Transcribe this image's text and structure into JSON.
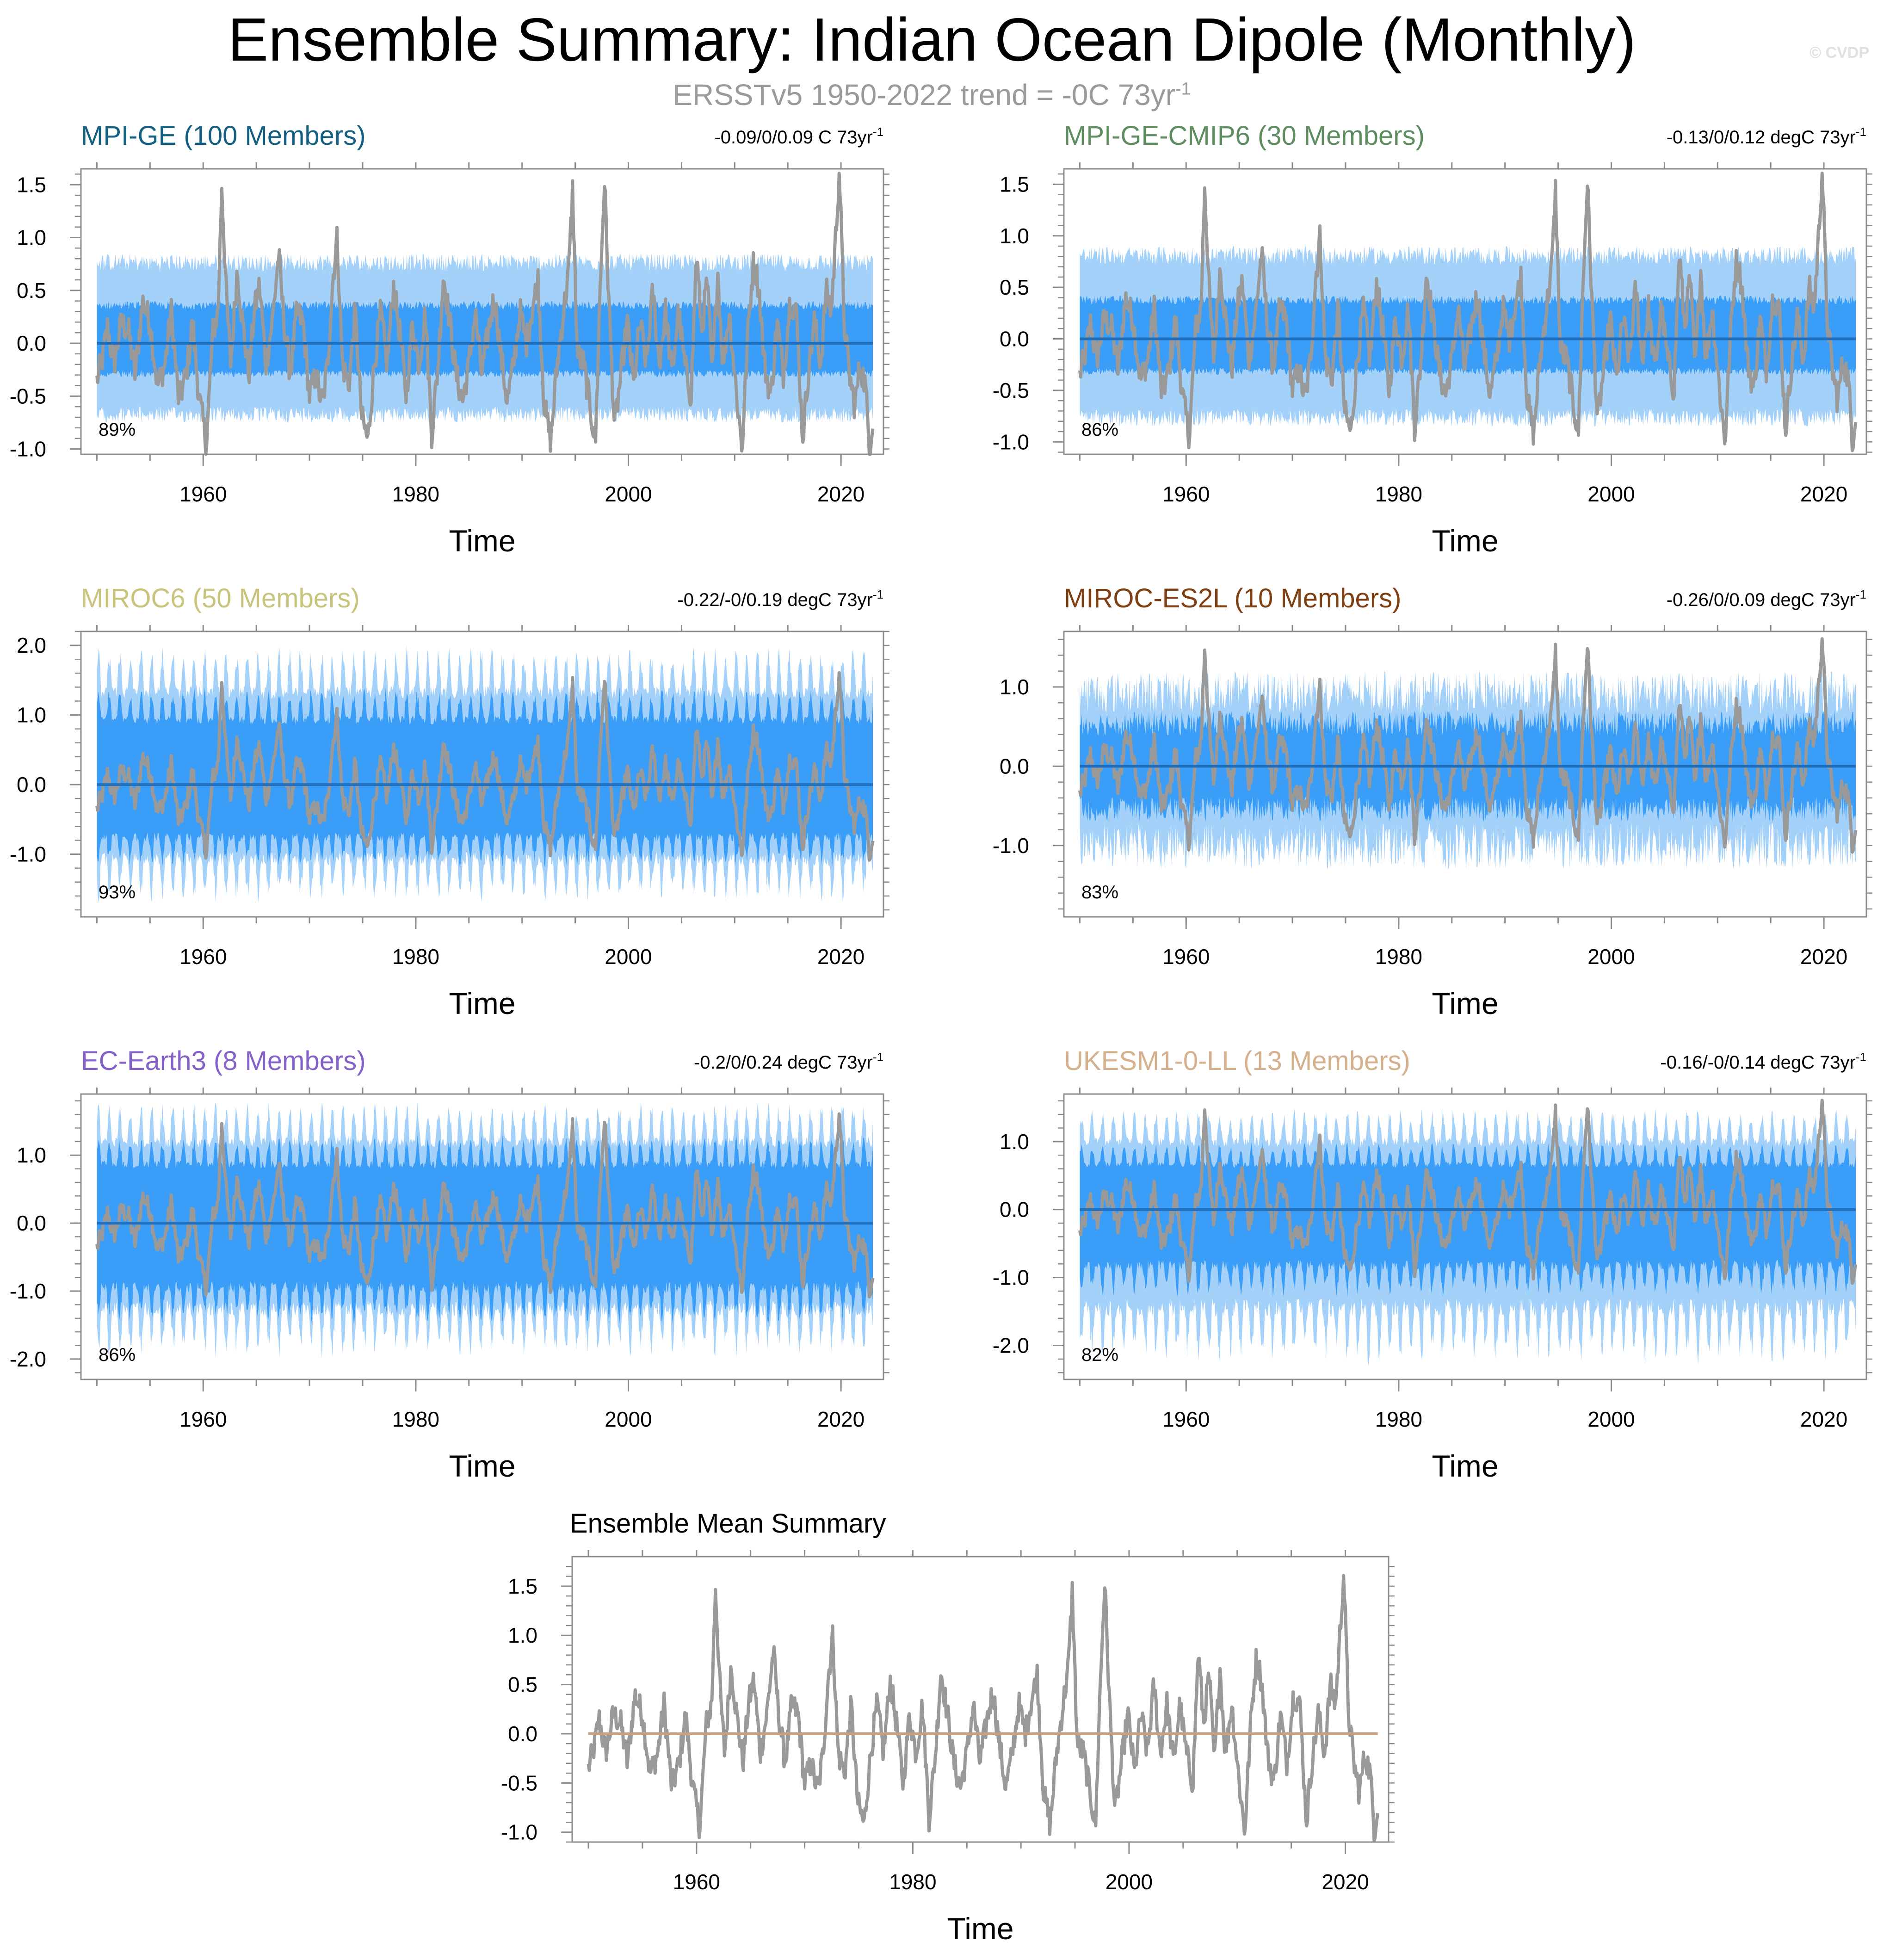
{
  "figure": {
    "title": "Ensemble Summary: Indian Ocean Dipole (Monthly)",
    "subtitle": "ERSSTv5 1950-2022 trend = -0C 73yr",
    "subtitle_exponent": "-1",
    "watermark": "© CVDP"
  },
  "colors": {
    "observed_line": "#999999",
    "spread_outer": "#a3d1fa",
    "spread_inner": "#3a9df7",
    "ensemble_mean_line": "#1f6fbf",
    "summary_zero_line": "#c9a07f",
    "axis": "#8c8c8c"
  },
  "chart_data": [
    {
      "id": "mpi-ge",
      "type": "line",
      "title": "MPI-GE (100 Members)",
      "title_color": "#135f82",
      "trend_text": "-0.09/0/0.09 C 73yr",
      "trend_exponent": "-1",
      "percent_label": "89%",
      "xlabel": "Time",
      "xlim": [
        1948.5,
        2024
      ],
      "ylim": [
        -1.05,
        1.65
      ],
      "yticks": [
        1.5,
        1.0,
        0.5,
        0.0,
        -0.5,
        -1.0
      ],
      "ytick_labels": [
        "1.5",
        "1.0",
        "0.5",
        "0.0",
        "-0.5",
        "-1.0"
      ],
      "xticks": [
        1960,
        1980,
        2000,
        2020
      ],
      "spread_style": "uniform",
      "spread_outer": [
        -0.75,
        0.85
      ],
      "spread_inner": [
        -0.32,
        0.4
      ]
    },
    {
      "id": "mpi-ge-cmip6",
      "type": "line",
      "title": "MPI-GE-CMIP6 (30 Members)",
      "title_color": "#5c8c5f",
      "trend_text": "-0.13/0/0.12 degC 73yr",
      "trend_exponent": "-1",
      "percent_label": "86%",
      "xlabel": "Time",
      "xlim": [
        1948.5,
        2024
      ],
      "ylim": [
        -1.12,
        1.65
      ],
      "yticks": [
        1.5,
        1.0,
        0.5,
        0.0,
        -0.5,
        -1.0
      ],
      "ytick_labels": [
        "1.5",
        "1.0",
        "0.5",
        "0.0",
        "-0.5",
        "-1.0"
      ],
      "xticks": [
        1960,
        1980,
        2000,
        2020
      ],
      "spread_style": "uniform",
      "spread_outer": [
        -0.85,
        0.9
      ],
      "spread_inner": [
        -0.35,
        0.42
      ]
    },
    {
      "id": "miroc6",
      "type": "line",
      "title": "MIROC6 (50 Members)",
      "title_color": "#c9c47c",
      "trend_text": "-0.22/-0/0.19 degC 73yr",
      "trend_exponent": "-1",
      "percent_label": "93%",
      "xlabel": "Time",
      "xlim": [
        1948.5,
        2024
      ],
      "ylim": [
        -1.9,
        2.2
      ],
      "yticks": [
        2.0,
        1.0,
        0.0,
        -1.0
      ],
      "ytick_labels": [
        "2.0",
        "1.0",
        "0.0",
        "-1.0"
      ],
      "xticks": [
        1960,
        1980,
        2000,
        2020
      ],
      "spread_style": "seasonal",
      "spread_outer": [
        -1.7,
        2.0
      ],
      "spread_inner": [
        -1.2,
        1.4
      ]
    },
    {
      "id": "miroc-es2l",
      "type": "line",
      "title": "MIROC-ES2L (10 Members)",
      "title_color": "#7f3f12",
      "trend_text": "-0.26/0/0.09 degC 73yr",
      "trend_exponent": "-1",
      "percent_label": "83%",
      "xlabel": "Time",
      "xlim": [
        1948.5,
        2024
      ],
      "ylim": [
        -1.9,
        1.7
      ],
      "yticks": [
        1.0,
        0.0,
        -1.0
      ],
      "ytick_labels": [
        "1.0",
        "0.0",
        "-1.0"
      ],
      "xticks": [
        1960,
        1980,
        2000,
        2020
      ],
      "spread_style": "noisy",
      "spread_outer": [
        -1.3,
        1.2
      ],
      "spread_inner": [
        -0.7,
        0.7
      ]
    },
    {
      "id": "ec-earth3",
      "type": "line",
      "title": "EC-Earth3 (8 Members)",
      "title_color": "#8461c9",
      "trend_text": "-0.2/0/0.24 degC 73yr",
      "trend_exponent": "-1",
      "percent_label": "86%",
      "xlabel": "Time",
      "xlim": [
        1948.5,
        2024
      ],
      "ylim": [
        -2.3,
        1.9
      ],
      "yticks": [
        1.0,
        0.0,
        -1.0,
        -2.0
      ],
      "ytick_labels": [
        "1.0",
        "0.0",
        "-1.0",
        "-2.0"
      ],
      "xticks": [
        1960,
        1980,
        2000,
        2020
      ],
      "spread_style": "seasonal",
      "spread_outer": [
        -2.0,
        1.8
      ],
      "spread_inner": [
        -1.5,
        1.3
      ]
    },
    {
      "id": "ukesm1-0-ll",
      "type": "line",
      "title": "UKESM1-0-LL (13 Members)",
      "title_color": "#d4b08c",
      "trend_text": "-0.16/-0/0.14 degC 73yr",
      "trend_exponent": "-1",
      "percent_label": "82%",
      "xlabel": "Time",
      "xlim": [
        1948.5,
        2024
      ],
      "ylim": [
        -2.5,
        1.7
      ],
      "yticks": [
        1.0,
        0.0,
        -1.0,
        -2.0
      ],
      "ytick_labels": [
        "1.0",
        "0.0",
        "-1.0",
        "-2.0"
      ],
      "xticks": [
        1960,
        1980,
        2000,
        2020
      ],
      "spread_style": "seasonal",
      "spread_outer": [
        -2.3,
        1.5
      ],
      "spread_inner": [
        -1.3,
        1.0
      ]
    },
    {
      "id": "ensemble-mean-summary",
      "type": "line",
      "title": "Ensemble Mean Summary",
      "title_color": "#000000",
      "trend_text": "",
      "trend_exponent": "",
      "percent_label": "",
      "xlabel": "Time",
      "xlim": [
        1948.5,
        2024
      ],
      "ylim": [
        -1.1,
        1.8
      ],
      "yticks": [
        1.5,
        1.0,
        0.5,
        0.0,
        -0.5,
        -1.0
      ],
      "ytick_labels": [
        "1.5",
        "1.0",
        "0.5",
        "0.0",
        "-0.5",
        "-1.0"
      ],
      "xticks": [
        1960,
        1980,
        2000,
        2020
      ],
      "spread_style": "none",
      "spread_outer": [
        0,
        0
      ],
      "spread_inner": [
        0,
        0
      ]
    }
  ],
  "observed_series": {
    "name": "ERSSTv5 observed IOD index",
    "start_year": 1950.0,
    "end_year": 2023.0,
    "anchors": [
      [
        1950.0,
        -0.35
      ],
      [
        1950.5,
        -0.15
      ],
      [
        1951.0,
        0.15
      ],
      [
        1951.6,
        -0.2
      ],
      [
        1952.3,
        0.2
      ],
      [
        1953.0,
        0.1
      ],
      [
        1953.6,
        -0.3
      ],
      [
        1954.3,
        0.4
      ],
      [
        1955.0,
        0.2
      ],
      [
        1955.7,
        -0.4
      ],
      [
        1956.4,
        -0.2
      ],
      [
        1957.0,
        0.3
      ],
      [
        1957.7,
        -0.55
      ],
      [
        1958.4,
        -0.3
      ],
      [
        1959.0,
        0.2
      ],
      [
        1959.6,
        -0.5
      ],
      [
        1960.3,
        -0.95
      ],
      [
        1960.9,
        0.1
      ],
      [
        1961.4,
        0.3
      ],
      [
        1961.75,
        1.5
      ],
      [
        1962.2,
        0.4
      ],
      [
        1962.6,
        -0.2
      ],
      [
        1963.2,
        0.7
      ],
      [
        1963.7,
        0.2
      ],
      [
        1964.3,
        -0.3
      ],
      [
        1964.8,
        0.3
      ],
      [
        1965.3,
        0.55
      ],
      [
        1965.9,
        -0.2
      ],
      [
        1966.5,
        0.2
      ],
      [
        1967.1,
        0.85
      ],
      [
        1967.6,
        0.2
      ],
      [
        1968.2,
        -0.3
      ],
      [
        1968.8,
        0.3
      ],
      [
        1969.4,
        0.2
      ],
      [
        1970.0,
        -0.5
      ],
      [
        1970.6,
        -0.3
      ],
      [
        1971.2,
        -0.6
      ],
      [
        1971.7,
        -0.2
      ],
      [
        1972.2,
        0.6
      ],
      [
        1972.6,
        1.0
      ],
      [
        1973.1,
        -0.2
      ],
      [
        1973.7,
        -0.4
      ],
      [
        1974.3,
        0.3
      ],
      [
        1974.9,
        -0.7
      ],
      [
        1975.5,
        -0.92
      ],
      [
        1976.1,
        -0.2
      ],
      [
        1976.7,
        0.3
      ],
      [
        1977.3,
        -0.2
      ],
      [
        1977.9,
        0.55
      ],
      [
        1978.5,
        0.1
      ],
      [
        1979.1,
        -0.5
      ],
      [
        1979.7,
        0.2
      ],
      [
        1980.3,
        -0.2
      ],
      [
        1980.9,
        0.3
      ],
      [
        1981.5,
        -0.85
      ],
      [
        1982.1,
        -0.2
      ],
      [
        1982.6,
        0.65
      ],
      [
        1983.2,
        0.2
      ],
      [
        1983.8,
        -0.3
      ],
      [
        1984.4,
        -0.55
      ],
      [
        1985.0,
        -0.2
      ],
      [
        1985.6,
        0.3
      ],
      [
        1986.2,
        -0.3
      ],
      [
        1986.8,
        0.1
      ],
      [
        1987.4,
        0.45
      ],
      [
        1988.0,
        -0.1
      ],
      [
        1988.6,
        -0.55
      ],
      [
        1989.2,
        -0.2
      ],
      [
        1989.8,
        0.3
      ],
      [
        1990.4,
        0.0
      ],
      [
        1991.0,
        0.35
      ],
      [
        1991.5,
        0.6
      ],
      [
        1992.1,
        -0.6
      ],
      [
        1992.7,
        -0.92
      ],
      [
        1993.3,
        -0.2
      ],
      [
        1993.9,
        0.3
      ],
      [
        1994.4,
        0.7
      ],
      [
        1994.75,
        1.45
      ],
      [
        1995.2,
        -0.1
      ],
      [
        1995.8,
        -0.2
      ],
      [
        1996.4,
        -0.6
      ],
      [
        1996.9,
        -0.95
      ],
      [
        1997.3,
        0.4
      ],
      [
        1997.75,
        1.55
      ],
      [
        1998.2,
        0.3
      ],
      [
        1998.7,
        -0.8
      ],
      [
        1999.3,
        -0.3
      ],
      [
        1999.9,
        0.2
      ],
      [
        2000.5,
        -0.4
      ],
      [
        2001.1,
        0.2
      ],
      [
        2001.7,
        -0.2
      ],
      [
        2002.3,
        0.5
      ],
      [
        2002.9,
        -0.2
      ],
      [
        2003.5,
        0.3
      ],
      [
        2004.1,
        -0.3
      ],
      [
        2004.7,
        0.3
      ],
      [
        2005.3,
        -0.2
      ],
      [
        2005.9,
        -0.5
      ],
      [
        2006.4,
        0.85
      ],
      [
        2006.9,
        0.1
      ],
      [
        2007.4,
        0.6
      ],
      [
        2007.9,
        -0.3
      ],
      [
        2008.4,
        0.7
      ],
      [
        2008.9,
        -0.2
      ],
      [
        2009.5,
        0.3
      ],
      [
        2010.1,
        -0.4
      ],
      [
        2010.7,
        -1.0
      ],
      [
        2011.3,
        0.2
      ],
      [
        2011.8,
        0.8
      ],
      [
        2012.3,
        0.5
      ],
      [
        2012.8,
        -0.2
      ],
      [
        2013.4,
        -0.5
      ],
      [
        2014.0,
        0.2
      ],
      [
        2014.6,
        -0.3
      ],
      [
        2015.2,
        0.4
      ],
      [
        2015.8,
        0.3
      ],
      [
        2016.4,
        -0.9
      ],
      [
        2016.9,
        -0.3
      ],
      [
        2017.5,
        0.2
      ],
      [
        2018.1,
        -0.2
      ],
      [
        2018.6,
        0.5
      ],
      [
        2019.1,
        0.3
      ],
      [
        2019.5,
        1.0
      ],
      [
        2019.85,
        1.65
      ],
      [
        2020.3,
        0.2
      ],
      [
        2020.8,
        -0.3
      ],
      [
        2021.3,
        -0.6
      ],
      [
        2021.8,
        -0.2
      ],
      [
        2022.3,
        -0.4
      ],
      [
        2022.7,
        -1.0
      ],
      [
        2023.0,
        -0.7
      ]
    ]
  }
}
